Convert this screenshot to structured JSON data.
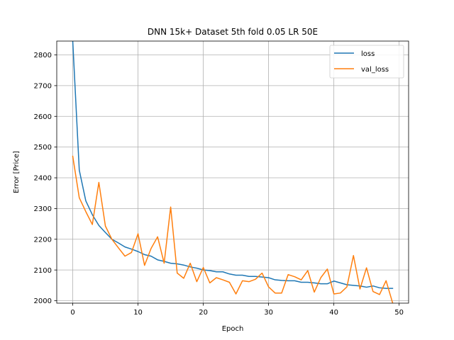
{
  "chart_data": {
    "type": "line",
    "title": "DNN 15k+ Dataset 5th fold 0.05 LR 50E",
    "xlabel": "Epoch",
    "ylabel": "Error [Price]",
    "xlim": [
      -2.45,
      51.45
    ],
    "ylim": [
      1992,
      2845
    ],
    "xticks": [
      0,
      10,
      20,
      30,
      40,
      50
    ],
    "yticks": [
      2000,
      2100,
      2200,
      2300,
      2400,
      2500,
      2600,
      2700,
      2800
    ],
    "grid": true,
    "legend_position": "top-right",
    "x": [
      0,
      1,
      2,
      3,
      4,
      5,
      6,
      7,
      8,
      9,
      10,
      11,
      12,
      13,
      14,
      15,
      16,
      17,
      18,
      19,
      20,
      21,
      22,
      23,
      24,
      25,
      26,
      27,
      28,
      29,
      30,
      31,
      32,
      33,
      34,
      35,
      36,
      37,
      38,
      39,
      40,
      41,
      42,
      43,
      44,
      45,
      46,
      47,
      48,
      49
    ],
    "series": [
      {
        "name": "loss",
        "color": "#1f77b4",
        "values": [
          2845,
          2425,
          2325,
          2280,
          2245,
          2222,
          2200,
          2188,
          2175,
          2168,
          2160,
          2150,
          2145,
          2133,
          2128,
          2122,
          2120,
          2116,
          2110,
          2106,
          2100,
          2098,
          2094,
          2094,
          2087,
          2083,
          2083,
          2079,
          2079,
          2077,
          2075,
          2068,
          2066,
          2065,
          2065,
          2060,
          2060,
          2058,
          2055,
          2055,
          2064,
          2058,
          2052,
          2050,
          2048,
          2044,
          2048,
          2042,
          2040,
          2040
        ]
      },
      {
        "name": "val_loss",
        "color": "#ff7f0e",
        "values": [
          2470,
          2335,
          2290,
          2248,
          2385,
          2243,
          2200,
          2172,
          2145,
          2157,
          2218,
          2115,
          2170,
          2208,
          2122,
          2305,
          2090,
          2073,
          2122,
          2062,
          2108,
          2058,
          2075,
          2068,
          2060,
          2022,
          2065,
          2062,
          2070,
          2090,
          2045,
          2025,
          2025,
          2085,
          2078,
          2068,
          2098,
          2028,
          2075,
          2103,
          2022,
          2025,
          2045,
          2147,
          2038,
          2107,
          2030,
          2020,
          2065,
          1993
        ]
      }
    ]
  }
}
